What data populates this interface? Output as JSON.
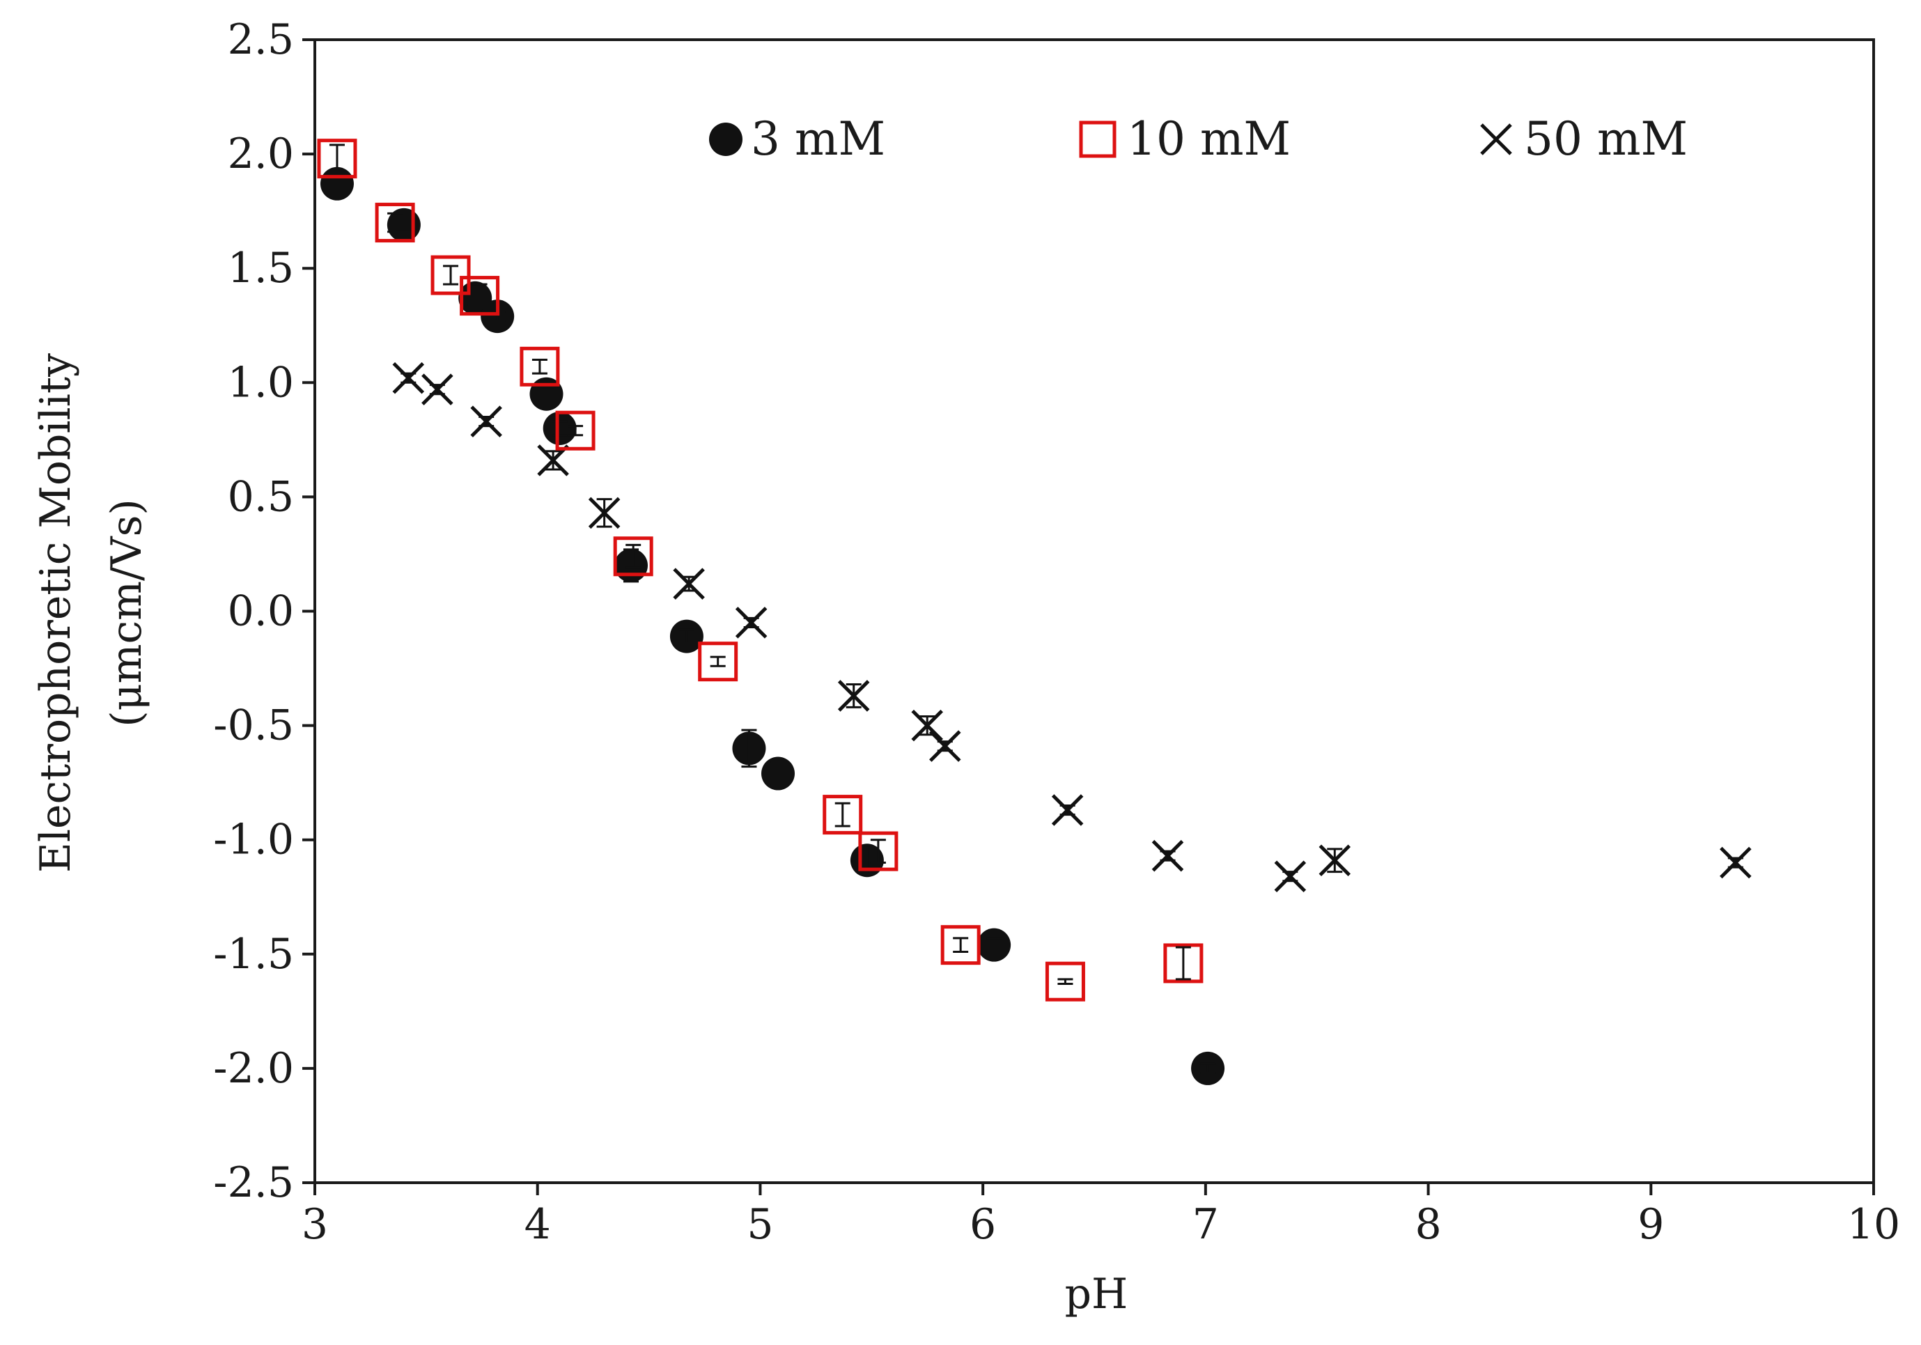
{
  "colors": {
    "axis": "#1a1a1a",
    "series_3mM": "#111111",
    "series_10mM": "#dd1111",
    "series_50mM": "#111111",
    "background": "#ffffff"
  },
  "chart_data": {
    "type": "scatter",
    "title": "",
    "xlabel": "pH",
    "ylabel_line1": "Electrophoretic Mobility",
    "ylabel_line2": "(μmcm/Vs)",
    "xlim": [
      3,
      10
    ],
    "ylim": [
      -2.5,
      2.5
    ],
    "x_ticks": [
      3,
      4,
      5,
      6,
      7,
      8,
      9,
      10
    ],
    "x_tick_labels": [
      "3",
      "4",
      "5",
      "6",
      "7",
      "8",
      "9",
      "10"
    ],
    "y_ticks": [
      2.5,
      2.0,
      1.5,
      1.0,
      0.5,
      0.0,
      -0.5,
      -1.0,
      -1.5,
      -2.0,
      -2.5
    ],
    "y_tick_labels": [
      "2.5",
      "2.0",
      "1.5",
      "1.0",
      "0.5",
      "0.0",
      "-0.5",
      "-1.0",
      "-1.5",
      "-2.0",
      "-2.5"
    ],
    "grid": false,
    "legend_position": "top",
    "series": [
      {
        "name": "3 mM",
        "marker": "filled-circle",
        "x": [
          3.1,
          3.4,
          3.72,
          3.82,
          4.04,
          4.1,
          4.42,
          4.67,
          4.95,
          5.08,
          5.48,
          6.05,
          7.01
        ],
        "y": [
          1.87,
          1.69,
          1.37,
          1.29,
          0.95,
          0.8,
          0.2,
          -0.11,
          -0.6,
          -0.71,
          -1.09,
          -1.46,
          -2.0
        ],
        "err": [
          0.05,
          0.02,
          0.03,
          0.02,
          0.03,
          0.03,
          0.07,
          0.03,
          0.08,
          0.05,
          0.06,
          0.03,
          0.02
        ]
      },
      {
        "name": "10 mM",
        "marker": "open-square",
        "x": [
          3.1,
          3.36,
          3.61,
          3.74,
          4.01,
          4.17,
          4.43,
          4.81,
          5.37,
          5.53,
          5.9,
          6.37,
          6.9
        ],
        "y": [
          1.98,
          1.7,
          1.47,
          1.38,
          1.07,
          0.79,
          0.24,
          -0.22,
          -0.89,
          -1.05,
          -1.46,
          -1.62,
          -1.54
        ],
        "err": [
          0.06,
          0.04,
          0.04,
          0.05,
          0.03,
          0.02,
          0.05,
          0.02,
          0.05,
          0.05,
          0.03,
          0.01,
          0.07
        ]
      },
      {
        "name": "50 mM",
        "marker": "cross",
        "x": [
          3.42,
          3.55,
          3.77,
          4.07,
          4.3,
          4.68,
          4.96,
          5.42,
          5.75,
          5.83,
          6.38,
          6.83,
          7.38,
          7.58,
          9.38
        ],
        "y": [
          1.02,
          0.97,
          0.83,
          0.66,
          0.43,
          0.12,
          -0.05,
          -0.37,
          -0.5,
          -0.59,
          -0.87,
          -1.07,
          -1.16,
          -1.09,
          -1.1
        ],
        "err": [
          0.02,
          0.02,
          0.02,
          0.04,
          0.06,
          0.03,
          0.02,
          0.05,
          0.04,
          0.02,
          0.02,
          0.02,
          0.02,
          0.05,
          0.02
        ]
      }
    ]
  }
}
